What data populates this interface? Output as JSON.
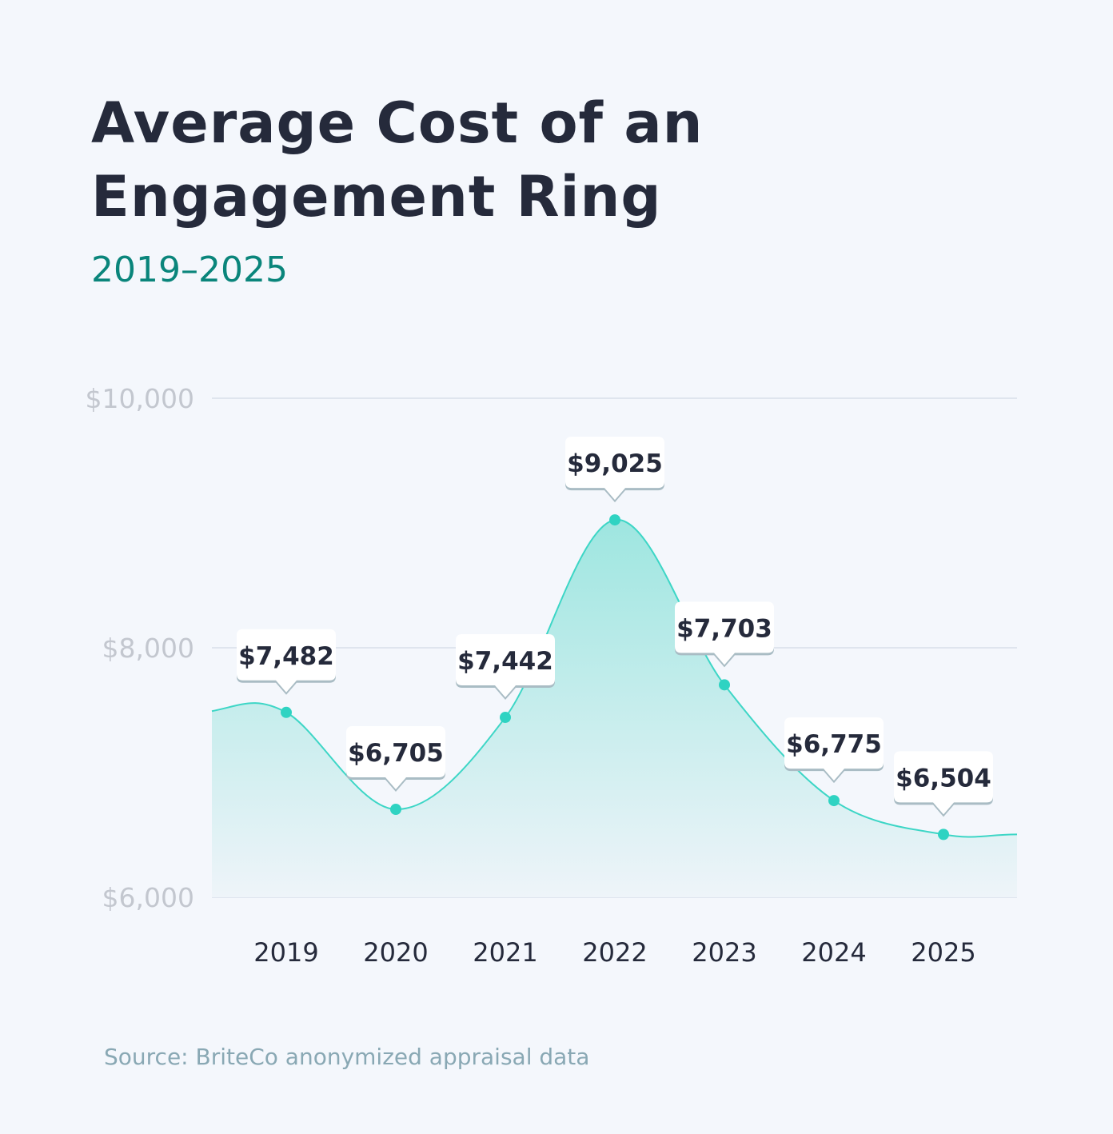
{
  "chart_data": {
    "type": "area",
    "title": "Average Cost of an Engagement Ring",
    "subtitle": "2019–2025",
    "categories": [
      "2019",
      "2020",
      "2021",
      "2022",
      "2023",
      "2024",
      "2025"
    ],
    "values": [
      7482,
      6705,
      7442,
      9025,
      7703,
      6775,
      6504
    ],
    "data_labels": [
      "$7,482",
      "$6,705",
      "$7,442",
      "$9,025",
      "$7,703",
      "$6,775",
      "$6,504"
    ],
    "ylim": [
      6000,
      10000
    ],
    "yticks": [
      6000,
      8000,
      10000
    ],
    "ytick_labels": [
      "$6,000",
      "$8,000",
      "$10,000"
    ],
    "grid": true,
    "xlabel": "",
    "ylabel": "",
    "colors": {
      "line": "#3dd6c6",
      "point": "#2fd3c2",
      "fill_top": "#9ee6e0",
      "fill_bottom": "#eef4f9",
      "subtitle": "#0a857b"
    }
  },
  "source": "Source: BriteCo anonymized appraisal data"
}
